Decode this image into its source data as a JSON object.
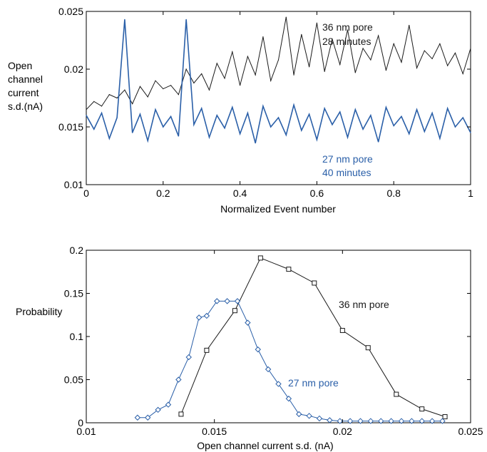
{
  "figure": {
    "series_colors": {
      "black": "#1a1a1a",
      "blue": "#2a5fa8"
    }
  },
  "chart_data": [
    {
      "type": "line",
      "title": "",
      "xlabel": "Normalized Event number",
      "ylabel_lines": [
        "Open",
        "channel",
        "current",
        "s.d.(nA)"
      ],
      "xlim": [
        0,
        1
      ],
      "ylim": [
        0.01,
        0.025
      ],
      "xticks": [
        "0",
        "0.2",
        "0.4",
        "0.6",
        "0.8",
        "1"
      ],
      "yticks": [
        "0.01",
        "0.015",
        "0.02",
        "0.025"
      ],
      "grid": false,
      "series": [
        {
          "name": "36 nm pore 28 minutes",
          "label_lines": [
            "36 nm pore",
            "28 minutes"
          ],
          "color": "#1a1a1a",
          "x": [
            0,
            0.02,
            0.04,
            0.06,
            0.08,
            0.1,
            0.12,
            0.14,
            0.16,
            0.18,
            0.2,
            0.22,
            0.24,
            0.26,
            0.28,
            0.3,
            0.32,
            0.34,
            0.36,
            0.38,
            0.4,
            0.42,
            0.44,
            0.46,
            0.48,
            0.5,
            0.52,
            0.54,
            0.56,
            0.58,
            0.6,
            0.62,
            0.64,
            0.66,
            0.68,
            0.7,
            0.72,
            0.74,
            0.76,
            0.78,
            0.8,
            0.82,
            0.84,
            0.86,
            0.88,
            0.9,
            0.92,
            0.94,
            0.96,
            0.98,
            1
          ],
          "y": [
            0.0165,
            0.0172,
            0.0168,
            0.0178,
            0.0175,
            0.0182,
            0.017,
            0.0185,
            0.0176,
            0.019,
            0.0183,
            0.0186,
            0.0178,
            0.02,
            0.0188,
            0.0196,
            0.0182,
            0.0205,
            0.0192,
            0.0215,
            0.0186,
            0.0211,
            0.0195,
            0.0228,
            0.019,
            0.0208,
            0.0245,
            0.0195,
            0.023,
            0.0202,
            0.024,
            0.0198,
            0.0226,
            0.0204,
            0.0234,
            0.0197,
            0.0218,
            0.0208,
            0.0229,
            0.0199,
            0.0222,
            0.0206,
            0.0238,
            0.0201,
            0.0216,
            0.0209,
            0.0222,
            0.0203,
            0.0214,
            0.0196,
            0.0218
          ]
        },
        {
          "name": "27 nm pore 40 minutes",
          "label_lines": [
            "27 nm pore",
            "40 minutes"
          ],
          "color": "#2a5fa8",
          "x": [
            0,
            0.02,
            0.04,
            0.06,
            0.08,
            0.1,
            0.12,
            0.14,
            0.16,
            0.18,
            0.2,
            0.22,
            0.24,
            0.26,
            0.28,
            0.3,
            0.32,
            0.34,
            0.36,
            0.38,
            0.4,
            0.42,
            0.44,
            0.46,
            0.48,
            0.5,
            0.52,
            0.54,
            0.56,
            0.58,
            0.6,
            0.62,
            0.64,
            0.66,
            0.68,
            0.7,
            0.72,
            0.74,
            0.76,
            0.78,
            0.8,
            0.82,
            0.84,
            0.86,
            0.88,
            0.9,
            0.92,
            0.94,
            0.96,
            0.98,
            1
          ],
          "y": [
            0.016,
            0.0148,
            0.0162,
            0.014,
            0.0158,
            0.0243,
            0.0145,
            0.0161,
            0.0138,
            0.0165,
            0.015,
            0.0159,
            0.0142,
            0.0243,
            0.0152,
            0.0166,
            0.0141,
            0.016,
            0.0149,
            0.0167,
            0.0144,
            0.0162,
            0.0136,
            0.0168,
            0.015,
            0.0158,
            0.0143,
            0.0169,
            0.0147,
            0.0161,
            0.0139,
            0.0166,
            0.0152,
            0.0163,
            0.0141,
            0.0165,
            0.0148,
            0.016,
            0.0137,
            0.0167,
            0.0151,
            0.0159,
            0.0144,
            0.0165,
            0.0146,
            0.0162,
            0.014,
            0.0166,
            0.015,
            0.0158,
            0.0145
          ]
        }
      ]
    },
    {
      "type": "line",
      "title": "",
      "xlabel": "Open channel current s.d. (nA)",
      "ylabel": "Probability",
      "xlim": [
        0.01,
        0.025
      ],
      "ylim": [
        0,
        0.2
      ],
      "xticks": [
        "0.01",
        "0.015",
        "0.02",
        "0.025"
      ],
      "yticks": [
        "0",
        "0.05",
        "0.1",
        "0.15",
        "0.2"
      ],
      "grid": false,
      "series": [
        {
          "name": "36 nm pore",
          "marker": "square",
          "color": "#1a1a1a",
          "x": [
            0.0137,
            0.0147,
            0.0158,
            0.0168,
            0.0179,
            0.0189,
            0.02,
            0.021,
            0.0221,
            0.0231,
            0.024
          ],
          "y": [
            0.01,
            0.084,
            0.13,
            0.191,
            0.178,
            0.162,
            0.107,
            0.087,
            0.033,
            0.016,
            0.007
          ]
        },
        {
          "name": "27 nm pore",
          "marker": "diamond",
          "color": "#2a5fa8",
          "x": [
            0.012,
            0.0124,
            0.0128,
            0.0132,
            0.0136,
            0.014,
            0.0144,
            0.0147,
            0.0151,
            0.0155,
            0.0159,
            0.0163,
            0.0167,
            0.0171,
            0.0175,
            0.0179,
            0.0183,
            0.0187,
            0.0191,
            0.0195,
            0.0199,
            0.0203,
            0.0207,
            0.0211,
            0.0215,
            0.0219,
            0.0223,
            0.0227,
            0.0231,
            0.0235,
            0.0239
          ],
          "y": [
            0.006,
            0.006,
            0.015,
            0.021,
            0.05,
            0.076,
            0.122,
            0.124,
            0.141,
            0.141,
            0.141,
            0.116,
            0.085,
            0.062,
            0.045,
            0.028,
            0.01,
            0.008,
            0.005,
            0.003,
            0.002,
            0.002,
            0.002,
            0.002,
            0.002,
            0.002,
            0.002,
            0.002,
            0.002,
            0.002,
            0.002
          ]
        }
      ]
    }
  ]
}
